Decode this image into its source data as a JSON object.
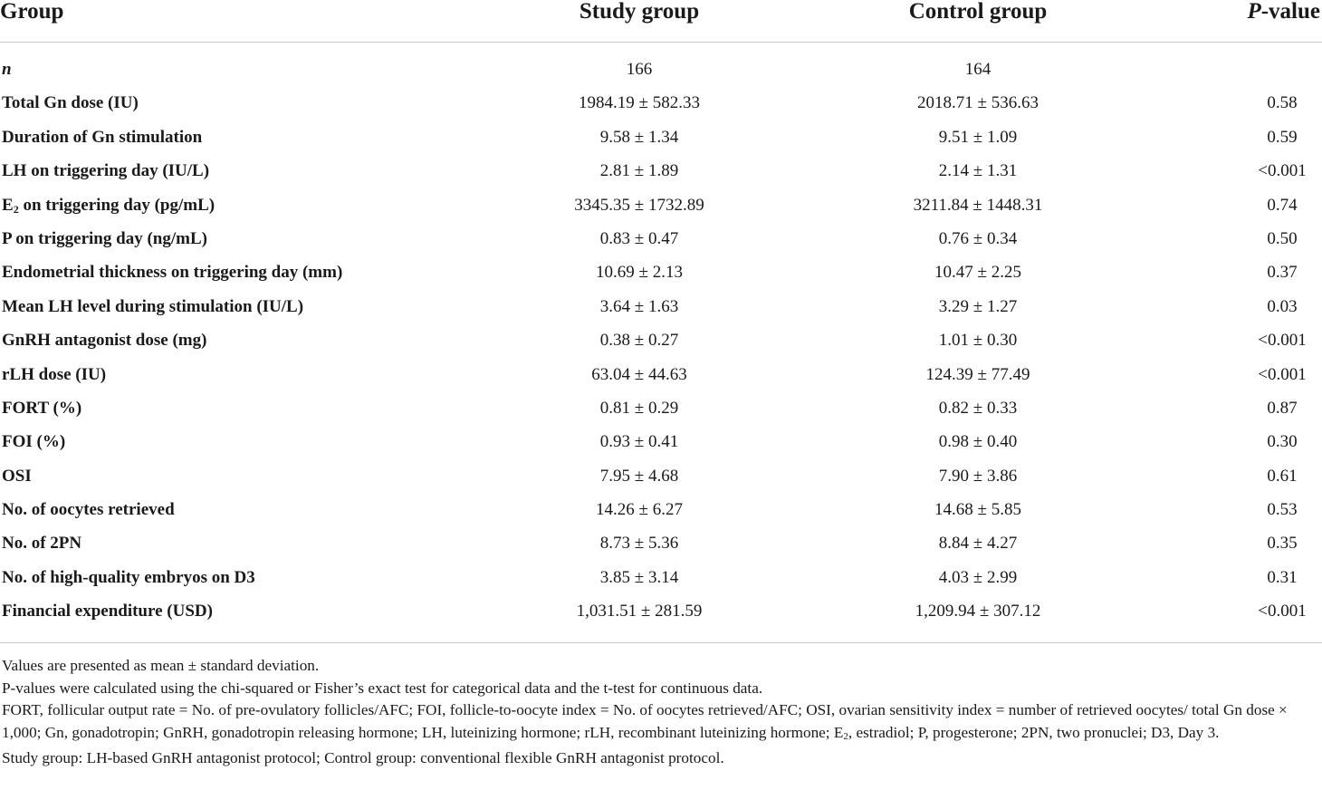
{
  "table": {
    "headers": {
      "group": "Group",
      "study": "Study group",
      "control": "Control group",
      "pvalue_p": "P",
      "pvalue_rest": "-value"
    },
    "rows": [
      {
        "label": "n",
        "study": "166",
        "control": "164",
        "p": ""
      },
      {
        "label": "Total Gn dose (IU)",
        "study": "1984.19 ± 582.33",
        "control": "2018.71 ± 536.63",
        "p": "0.58"
      },
      {
        "label": "Duration of Gn stimulation",
        "study": "9.58 ± 1.34",
        "control": "9.51 ± 1.09",
        "p": "0.59"
      },
      {
        "label": "LH on triggering day (IU/L)",
        "study": "2.81 ± 1.89",
        "control": "2.14 ± 1.31",
        "p": "<0.001"
      },
      {
        "label_pre": "E",
        "label_sub": "2",
        "label_post": " on triggering day (pg/mL)",
        "study": "3345.35 ± 1732.89",
        "control": "3211.84 ± 1448.31",
        "p": "0.74"
      },
      {
        "label": "P on triggering day (ng/mL)",
        "study": "0.83 ± 0.47",
        "control": "0.76 ± 0.34",
        "p": "0.50"
      },
      {
        "label": "Endometrial thickness on triggering day (mm)",
        "study": "10.69 ± 2.13",
        "control": "10.47 ± 2.25",
        "p": "0.37"
      },
      {
        "label": "Mean LH level during stimulation (IU/L)",
        "study": "3.64 ± 1.63",
        "control": "3.29 ± 1.27",
        "p": "0.03"
      },
      {
        "label": "GnRH antagonist dose (mg)",
        "study": "0.38 ± 0.27",
        "control": "1.01 ± 0.30",
        "p": "<0.001"
      },
      {
        "label": "rLH dose (IU)",
        "study": "63.04 ± 44.63",
        "control": "124.39 ± 77.49",
        "p": "<0.001"
      },
      {
        "label": "FORT (%)",
        "study": "0.81 ± 0.29",
        "control": "0.82 ± 0.33",
        "p": "0.87"
      },
      {
        "label": "FOI (%)",
        "study": "0.93 ± 0.41",
        "control": "0.98 ± 0.40",
        "p": "0.30"
      },
      {
        "label": "OSI",
        "study": "7.95 ± 4.68",
        "control": "7.90 ± 3.86",
        "p": "0.61"
      },
      {
        "label": "No. of oocytes retrieved",
        "study": "14.26 ± 6.27",
        "control": "14.68 ± 5.85",
        "p": "0.53"
      },
      {
        "label": "No. of 2PN",
        "study": "8.73 ± 5.36",
        "control": "8.84 ± 4.27",
        "p": "0.35"
      },
      {
        "label": "No. of high-quality embryos on D3",
        "study": "3.85 ± 3.14",
        "control": "4.03 ± 2.99",
        "p": "0.31"
      },
      {
        "label": "Financial expenditure (USD)",
        "study": "1,031.51 ± 281.59",
        "control": "1,209.94 ± 307.12",
        "p": "<0.001"
      }
    ]
  },
  "notes": {
    "line1": "Values are presented as mean ± standard deviation.",
    "line2": "P-values were calculated using the chi-squared or Fisher’s exact test for categorical data and the t-test for continuous data.",
    "line3_pre": "FORT, follicular output rate = No. of pre-ovulatory follicles/AFC; FOI, follicle-to-oocyte index = No. of oocytes retrieved/AFC; OSI, ovarian sensitivity index = number of retrieved oocytes/ total Gn dose × 1,000; Gn, gonadotropin; GnRH, gonadotropin releasing hormone; LH, luteinizing hormone; rLH, recombinant luteinizing hormone; E",
    "line3_sub": "2",
    "line3_post": ", estradiol; P, progesterone; 2PN, two pronuclei; D3, Day 3.",
    "line4": "Study group: LH-based GnRH antagonist protocol; Control group: conventional flexible GnRH antagonist protocol."
  }
}
